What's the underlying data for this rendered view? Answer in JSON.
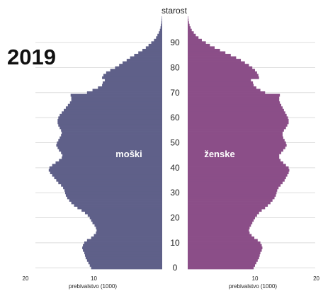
{
  "chart_data": {
    "type": "bar",
    "orientation": "horizontal-population-pyramid",
    "year_label": "2019",
    "y_axis_title": "starost",
    "x_axis_title_left": "prebivalstvo (1000)",
    "x_axis_title_right": "prebivalstvo (1000)",
    "y_ticks": [
      "0",
      "10",
      "20",
      "30",
      "40",
      "50",
      "60",
      "70",
      "80",
      "90"
    ],
    "x_ticks_left": [
      "20",
      "10"
    ],
    "x_ticks_right": [
      "10",
      "20"
    ],
    "xlim": [
      0,
      20
    ],
    "ylim": [
      0,
      100
    ],
    "grid": true,
    "colors": {
      "male": "#5f6089",
      "female": "#8b4e88",
      "grid": "#dddddd"
    },
    "series": [
      {
        "name": "moški",
        "label": "moški",
        "side": "left",
        "ages": [
          0,
          1,
          2,
          3,
          4,
          5,
          6,
          7,
          8,
          9,
          10,
          11,
          12,
          13,
          14,
          15,
          16,
          17,
          18,
          19,
          20,
          21,
          22,
          23,
          24,
          25,
          26,
          27,
          28,
          29,
          30,
          31,
          32,
          33,
          34,
          35,
          36,
          37,
          38,
          39,
          40,
          41,
          42,
          43,
          44,
          45,
          46,
          47,
          48,
          49,
          50,
          51,
          52,
          53,
          54,
          55,
          56,
          57,
          58,
          59,
          60,
          61,
          62,
          63,
          64,
          65,
          66,
          67,
          68,
          69,
          70,
          71,
          72,
          73,
          74,
          75,
          76,
          77,
          78,
          79,
          80,
          81,
          82,
          83,
          84,
          85,
          86,
          87,
          88,
          89,
          90,
          91,
          92,
          93,
          94,
          95,
          96,
          97,
          98,
          99,
          100
        ],
        "values": [
          10.4,
          10.6,
          10.8,
          11.0,
          11.2,
          11.3,
          11.4,
          11.6,
          11.7,
          11.6,
          11.4,
          11.0,
          10.4,
          10.0,
          9.7,
          9.6,
          9.7,
          9.9,
          10.2,
          10.4,
          10.6,
          10.9,
          11.3,
          11.8,
          12.4,
          12.9,
          13.3,
          13.6,
          13.9,
          14.1,
          14.2,
          14.3,
          14.5,
          14.8,
          15.2,
          15.5,
          15.8,
          16.1,
          16.4,
          16.6,
          16.5,
          16.1,
          15.6,
          15.1,
          14.7,
          14.6,
          14.8,
          15.1,
          15.3,
          15.5,
          15.4,
          15.2,
          15.0,
          14.8,
          14.7,
          14.8,
          15.0,
          15.2,
          15.3,
          15.3,
          15.2,
          15.0,
          14.7,
          14.4,
          14.1,
          13.8,
          13.5,
          13.3,
          13.3,
          13.4,
          11.0,
          10.2,
          9.4,
          8.8,
          8.7,
          8.4,
          8.8,
          8.6,
          8.2,
          7.6,
          6.9,
          6.3,
          5.8,
          5.2,
          4.7,
          4.1,
          3.5,
          2.9,
          2.4,
          2.0,
          1.6,
          1.2,
          0.9,
          0.7,
          0.5,
          0.35,
          0.25,
          0.18,
          0.12,
          0.08,
          0.05
        ]
      },
      {
        "name": "ženske",
        "label": "ženske",
        "side": "right",
        "ages": [
          0,
          1,
          2,
          3,
          4,
          5,
          6,
          7,
          8,
          9,
          10,
          11,
          12,
          13,
          14,
          15,
          16,
          17,
          18,
          19,
          20,
          21,
          22,
          23,
          24,
          25,
          26,
          27,
          28,
          29,
          30,
          31,
          32,
          33,
          34,
          35,
          36,
          37,
          38,
          39,
          40,
          41,
          42,
          43,
          44,
          45,
          46,
          47,
          48,
          49,
          50,
          51,
          52,
          53,
          54,
          55,
          56,
          57,
          58,
          59,
          60,
          61,
          62,
          63,
          64,
          65,
          66,
          67,
          68,
          69,
          70,
          71,
          72,
          73,
          74,
          75,
          76,
          77,
          78,
          79,
          80,
          81,
          82,
          83,
          84,
          85,
          86,
          87,
          88,
          89,
          90,
          91,
          92,
          93,
          94,
          95,
          96,
          97,
          98,
          99,
          100
        ],
        "values": [
          9.8,
          10.0,
          10.2,
          10.4,
          10.6,
          10.7,
          10.8,
          11.0,
          11.1,
          11.0,
          10.8,
          10.4,
          9.9,
          9.5,
          9.2,
          9.1,
          9.2,
          9.4,
          9.6,
          9.8,
          10.0,
          10.3,
          10.6,
          11.0,
          11.5,
          11.9,
          12.3,
          12.6,
          12.9,
          13.1,
          13.2,
          13.3,
          13.5,
          13.8,
          14.1,
          14.4,
          14.6,
          14.8,
          15.0,
          15.1,
          15.0,
          14.6,
          14.2,
          13.8,
          13.6,
          13.6,
          13.9,
          14.2,
          14.5,
          14.7,
          14.6,
          14.4,
          14.2,
          14.1,
          14.1,
          14.3,
          14.6,
          14.8,
          15.0,
          15.0,
          14.9,
          14.7,
          14.5,
          14.3,
          14.1,
          13.9,
          13.7,
          13.6,
          13.6,
          13.7,
          11.5,
          10.8,
          10.2,
          9.8,
          9.7,
          9.4,
          10.6,
          10.5,
          10.3,
          10.0,
          9.6,
          9.1,
          8.5,
          7.9,
          7.2,
          6.4,
          5.6,
          4.8,
          4.0,
          3.3,
          2.7,
          2.1,
          1.6,
          1.2,
          0.9,
          0.6,
          0.42,
          0.28,
          0.18,
          0.11,
          0.06
        ]
      }
    ]
  }
}
